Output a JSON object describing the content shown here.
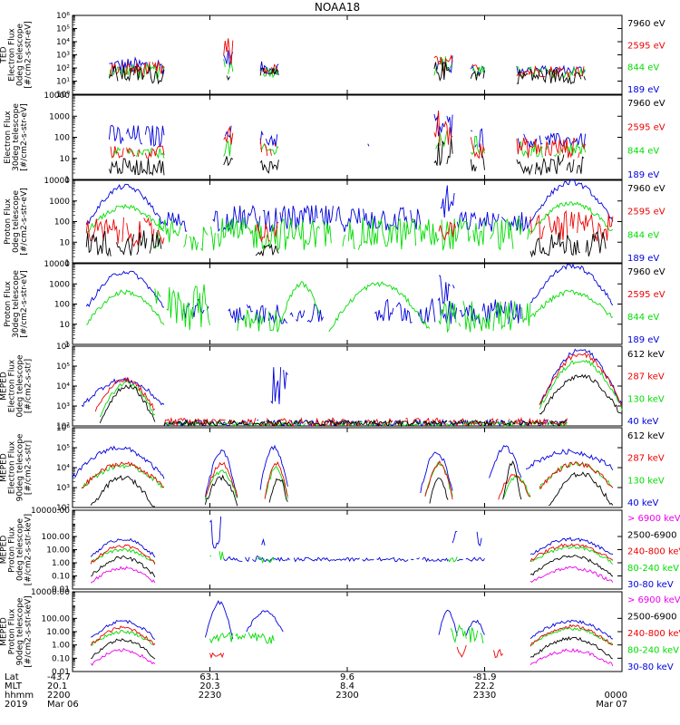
{
  "title": "NOAA18",
  "colors": {
    "blue": "#0000dd",
    "red": "#ee0000",
    "green": "#00dd00",
    "black": "#000000",
    "magenta": "#ee00ee"
  },
  "chart_data": {
    "type": "line",
    "title": "NOAA18",
    "panels": [
      {
        "ylabel": [
          "TED",
          "Electron Flux",
          "0deg telescope",
          "[#/cm2-s-str-eV]"
        ],
        "yscale": "log",
        "ylim": [
          1,
          1000000
        ],
        "ticks": [
          {
            "value": 1,
            "label": "10⁰"
          },
          {
            "value": 10,
            "label": "10¹"
          },
          {
            "value": 100,
            "label": "10²"
          },
          {
            "value": 1000,
            "label": "10³"
          },
          {
            "value": 10000,
            "label": "10⁴"
          },
          {
            "value": 100000,
            "label": "10⁵"
          },
          {
            "value": 1000000,
            "label": "10⁶"
          }
        ],
        "legend": [
          {
            "label": "7960 eV",
            "color": "black"
          },
          {
            "label": "2595 eV",
            "color": "red"
          },
          {
            "label": "844 eV",
            "color": "green"
          },
          {
            "label": "189 eV",
            "color": "blue"
          }
        ]
      },
      {
        "ylabel": [
          "Electron Flux",
          "30deg telescope",
          "[#/cm2-s-str-eV]"
        ],
        "yscale": "log",
        "ylim": [
          1,
          10000
        ],
        "ticks": [
          {
            "value": 1,
            "label": "1"
          },
          {
            "value": 10,
            "label": "10"
          },
          {
            "value": 100,
            "label": "100"
          },
          {
            "value": 1000,
            "label": "1000"
          },
          {
            "value": 10000,
            "label": "10000"
          }
        ],
        "legend": [
          {
            "label": "7960 eV",
            "color": "black"
          },
          {
            "label": "2595 eV",
            "color": "red"
          },
          {
            "label": "844 eV",
            "color": "green"
          },
          {
            "label": "189 eV",
            "color": "blue"
          }
        ]
      },
      {
        "ylabel": [
          "Proton Flux",
          "0deg telescope",
          "[#/cm2-s-str-eV]"
        ],
        "yscale": "log",
        "ylim": [
          1,
          10000
        ],
        "ticks": [
          {
            "value": 1,
            "label": "1"
          },
          {
            "value": 10,
            "label": "10"
          },
          {
            "value": 100,
            "label": "100"
          },
          {
            "value": 1000,
            "label": "1000"
          },
          {
            "value": 10000,
            "label": "10000"
          }
        ],
        "legend": [
          {
            "label": "7960 eV",
            "color": "black"
          },
          {
            "label": "2595 eV",
            "color": "red"
          },
          {
            "label": "844 eV",
            "color": "green"
          },
          {
            "label": "189 eV",
            "color": "blue"
          }
        ]
      },
      {
        "ylabel": [
          "Proton Flux",
          "30deg telescope",
          "[#/cm2-s-str-eV]"
        ],
        "yscale": "log",
        "ylim": [
          1,
          10000
        ],
        "ticks": [
          {
            "value": 1,
            "label": "1"
          },
          {
            "value": 10,
            "label": "10"
          },
          {
            "value": 100,
            "label": "100"
          },
          {
            "value": 1000,
            "label": "1000"
          },
          {
            "value": 10000,
            "label": "10000"
          }
        ],
        "legend": [
          {
            "label": "7960 eV",
            "color": "black"
          },
          {
            "label": "2595 eV",
            "color": "red"
          },
          {
            "label": "844 eV",
            "color": "green"
          },
          {
            "label": "189 eV",
            "color": "blue"
          }
        ]
      },
      {
        "ylabel": [
          "MEPED",
          "Electron Flux",
          "0deg telescope",
          "[#/cm2-s-str]"
        ],
        "yscale": "log",
        "ylim": [
          100,
          1000000
        ],
        "ticks": [
          {
            "value": 100,
            "label": "10²"
          },
          {
            "value": 1000,
            "label": "10³"
          },
          {
            "value": 10000,
            "label": "10⁴"
          },
          {
            "value": 100000,
            "label": "10⁵"
          },
          {
            "value": 1000000,
            "label": "10⁶"
          }
        ],
        "legend": [
          {
            "label": "612 keV",
            "color": "black"
          },
          {
            "label": "287 keV",
            "color": "red"
          },
          {
            "label": "130 keV",
            "color": "green"
          },
          {
            "label": "40 keV",
            "color": "blue"
          }
        ]
      },
      {
        "ylabel": [
          "MEPED",
          "Electron Flux",
          "90deg telescope",
          "[#/cm2-s-str]"
        ],
        "yscale": "log",
        "ylim": [
          100,
          1000000
        ],
        "ticks": [
          {
            "value": 100,
            "label": "10²"
          },
          {
            "value": 1000,
            "label": "10³"
          },
          {
            "value": 10000,
            "label": "10⁴"
          },
          {
            "value": 100000,
            "label": "10⁵"
          },
          {
            "value": 1000000,
            "label": "10⁶"
          }
        ],
        "legend": [
          {
            "label": "612 keV",
            "color": "black"
          },
          {
            "label": "287 keV",
            "color": "red"
          },
          {
            "label": "130 keV",
            "color": "green"
          },
          {
            "label": "40 keV",
            "color": "blue"
          }
        ]
      },
      {
        "ylabel": [
          "MEPED",
          "Proton Flux",
          "0deg telescope",
          "[#/cm2-s-str-keV]"
        ],
        "yscale": "log",
        "ylim": [
          0.01,
          10000
        ],
        "ticks": [
          {
            "value": 0.01,
            "label": "0.01"
          },
          {
            "value": 0.1,
            "label": "0.10"
          },
          {
            "value": 1,
            "label": "1.00"
          },
          {
            "value": 10,
            "label": "10.00"
          },
          {
            "value": 100,
            "label": "100.00"
          },
          {
            "value": 10000,
            "label": "10000.00"
          }
        ],
        "legend": [
          {
            "label": "> 6900 keV",
            "color": "magenta"
          },
          {
            "label": "2500-6900",
            "color": "black"
          },
          {
            "label": "240-800 keV",
            "color": "red"
          },
          {
            "label": "80-240 keV",
            "color": "green"
          },
          {
            "label": "30-80 keV",
            "color": "blue"
          }
        ]
      },
      {
        "ylabel": [
          "MEPED",
          "Proton Flux",
          "90deg telescope",
          "[#/cm2-s-str-keV]"
        ],
        "yscale": "log",
        "ylim": [
          0.01,
          10000
        ],
        "ticks": [
          {
            "value": 0.01,
            "label": "0.01"
          },
          {
            "value": 0.1,
            "label": "0.10"
          },
          {
            "value": 1,
            "label": "1.00"
          },
          {
            "value": 10,
            "label": "10.00"
          },
          {
            "value": 100,
            "label": "100.00"
          },
          {
            "value": 10000,
            "label": "10000.00"
          }
        ],
        "legend": [
          {
            "label": "> 6900 keV",
            "color": "magenta"
          },
          {
            "label": "2500-6900",
            "color": "black"
          },
          {
            "label": "240-800 keV",
            "color": "red"
          },
          {
            "label": "80-240 keV",
            "color": "green"
          },
          {
            "label": "30-80 keV",
            "color": "blue"
          }
        ]
      }
    ],
    "xaxis": {
      "range_minutes": [
        0,
        120
      ],
      "row_labels": [
        "Lat",
        "MLT",
        "hhmm",
        "2019"
      ],
      "ticks": [
        {
          "minute": 0,
          "lat": "-43.7",
          "mlt": "20.1",
          "hhmm": "2200",
          "date": "Mar 06"
        },
        {
          "minute": 30,
          "lat": "63.1",
          "mlt": "20.3",
          "hhmm": "2230",
          "date": ""
        },
        {
          "minute": 60,
          "lat": "9.6",
          "mlt": "8.4",
          "hhmm": "2300",
          "date": ""
        },
        {
          "minute": 90,
          "lat": "-81.9",
          "mlt": "22.2",
          "hhmm": "2330",
          "date": ""
        },
        {
          "minute": 120,
          "lat": "",
          "mlt": "",
          "hhmm": "0000",
          "date": "Mar 07"
        }
      ]
    }
  }
}
